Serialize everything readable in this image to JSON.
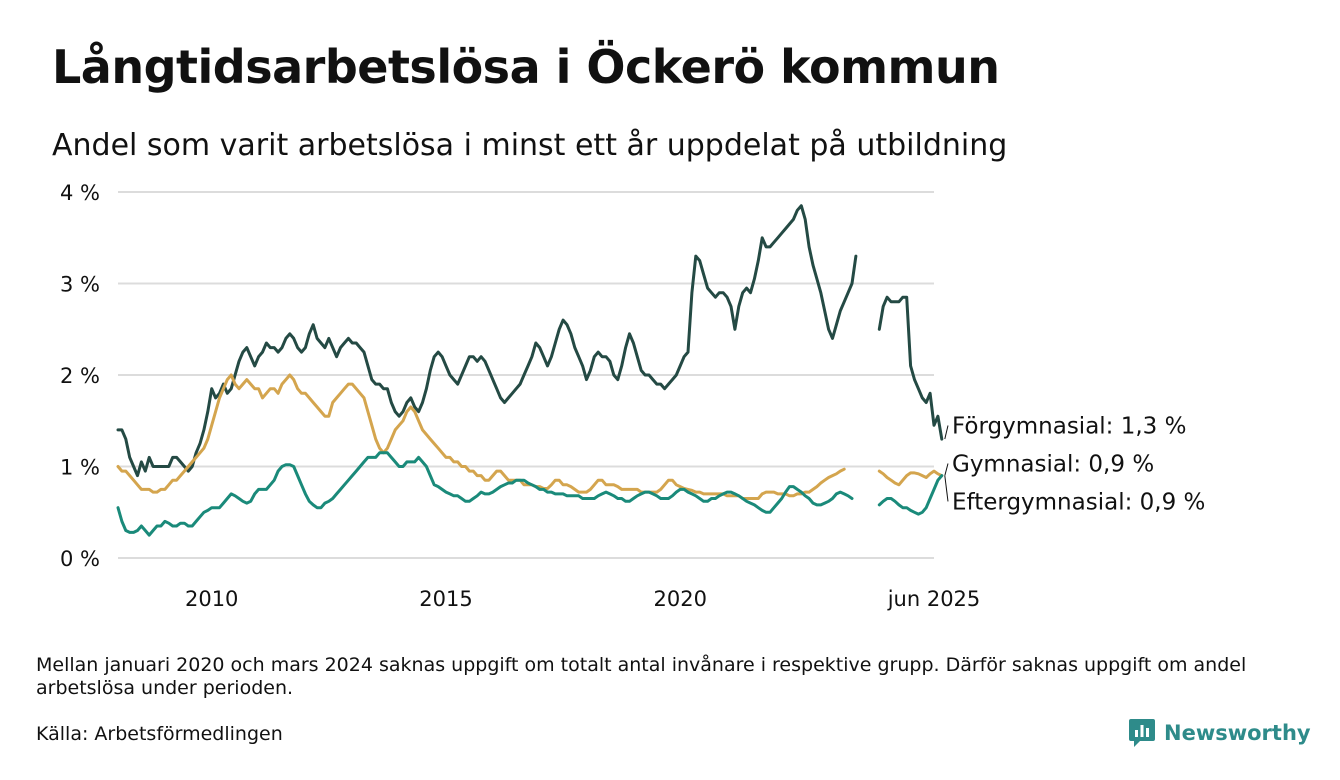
{
  "header": {
    "title": "Långtidsarbetslösa i Öckerö kommun",
    "subtitle": "Andel som varit arbetslösa i minst ett år uppdelat på utbildning"
  },
  "footer": {
    "note": "Mellan januari 2020 och mars 2024 saknas uppgift om totalt antal invånare i respektive grupp. Därför saknas uppgift om andel arbetslösa under perioden.",
    "source": "Källa: Arbetsförmedlingen",
    "brand": "Newsworthy",
    "brand_color": "#2e8b8a",
    "brand_icon": "bar-chart-speech-bubble-icon"
  },
  "chart_data": {
    "type": "line",
    "title": "",
    "xlabel": "",
    "ylabel": "",
    "ylim": [
      0,
      4
    ],
    "xlim": [
      "2008-01",
      "2025-06"
    ],
    "y_ticks": [
      {
        "value": 0,
        "label": "0 %"
      },
      {
        "value": 1,
        "label": "1 %"
      },
      {
        "value": 2,
        "label": "2 %"
      },
      {
        "value": 3,
        "label": "3 %"
      },
      {
        "value": 4,
        "label": "4 %"
      }
    ],
    "x_ticks": [
      {
        "value": "2010-01",
        "label": "2010"
      },
      {
        "value": "2015-01",
        "label": "2015"
      },
      {
        "value": "2020-01",
        "label": "2020"
      },
      {
        "value": "2025-06",
        "label": "jun 2025"
      }
    ],
    "grid": "horizontal",
    "legend": "direct labels at right end of lines",
    "series": [
      {
        "label": "Förgymnasial: 1,3 %",
        "color": "#244a44",
        "segments": [
          {
            "start": "2008-01",
            "values": [
              1.4,
              1.4,
              1.3,
              1.1,
              1.0,
              0.9,
              1.05,
              0.95,
              1.1,
              1.0,
              1.0,
              1.0,
              1.0,
              1.0,
              1.1,
              1.1,
              1.05,
              1.0,
              0.95,
              1.0,
              1.15,
              1.25,
              1.4,
              1.6,
              1.85,
              1.75,
              1.8,
              1.9,
              1.8,
              1.85,
              2.0,
              2.15,
              2.25,
              2.3,
              2.2,
              2.1,
              2.2,
              2.25,
              2.35,
              2.3,
              2.3,
              2.25,
              2.3,
              2.4,
              2.45,
              2.4,
              2.3,
              2.25,
              2.3,
              2.45,
              2.55,
              2.4,
              2.35,
              2.3,
              2.4,
              2.3,
              2.2,
              2.3,
              2.35,
              2.4,
              2.35,
              2.35,
              2.3,
              2.25,
              2.1,
              1.95,
              1.9,
              1.9,
              1.85,
              1.85,
              1.7,
              1.6,
              1.55,
              1.6,
              1.7,
              1.75,
              1.65,
              1.6,
              1.7,
              1.85,
              2.05,
              2.2,
              2.25,
              2.2,
              2.1,
              2.0,
              1.95,
              1.9,
              2.0,
              2.1,
              2.2,
              2.2,
              2.15,
              2.2,
              2.15,
              2.05,
              1.95,
              1.85,
              1.75,
              1.7,
              1.75,
              1.8,
              1.85,
              1.9,
              2.0,
              2.1,
              2.2,
              2.35,
              2.3,
              2.2,
              2.1,
              2.2,
              2.35,
              2.5,
              2.6,
              2.55,
              2.45,
              2.3,
              2.2,
              2.1,
              1.95,
              2.05,
              2.2,
              2.25,
              2.2,
              2.2,
              2.15,
              2.0,
              1.95,
              2.1,
              2.3,
              2.45,
              2.35,
              2.2,
              2.05,
              2.0,
              2.0,
              1.95,
              1.9,
              1.9,
              1.85,
              1.9,
              1.95,
              2.0,
              2.1,
              2.2,
              2.25,
              2.9,
              3.3,
              3.25,
              3.1,
              2.95,
              2.9,
              2.85,
              2.9,
              2.9,
              2.85,
              2.75,
              2.5,
              2.75,
              2.9,
              2.95,
              2.9,
              3.05,
              3.25,
              3.5,
              3.4,
              3.4,
              3.45,
              3.5,
              3.55,
              3.6,
              3.65,
              3.7,
              3.8,
              3.85,
              3.7,
              3.4,
              3.2,
              3.05,
              2.9,
              2.7,
              2.5,
              2.4,
              2.55,
              2.7,
              2.8,
              2.9,
              3.0,
              3.3
            ]
          },
          {
            "start": "2024-04",
            "values": [
              2.5,
              2.75,
              2.85,
              2.8,
              2.8,
              2.8,
              2.85,
              2.85,
              2.1,
              1.95,
              1.85,
              1.75,
              1.7,
              1.8,
              1.45,
              1.55,
              1.3
            ]
          }
        ]
      },
      {
        "label": "Gymnasial: 0,9 %",
        "color": "#d4a54e",
        "segments": [
          {
            "start": "2008-01",
            "values": [
              1.0,
              0.95,
              0.95,
              0.9,
              0.85,
              0.8,
              0.75,
              0.75,
              0.75,
              0.72,
              0.72,
              0.75,
              0.75,
              0.8,
              0.85,
              0.85,
              0.9,
              0.95,
              1.0,
              1.05,
              1.1,
              1.15,
              1.2,
              1.3,
              1.45,
              1.6,
              1.75,
              1.85,
              1.95,
              2.0,
              1.9,
              1.85,
              1.9,
              1.95,
              1.9,
              1.85,
              1.85,
              1.75,
              1.8,
              1.85,
              1.85,
              1.8,
              1.9,
              1.95,
              2.0,
              1.95,
              1.85,
              1.8,
              1.8,
              1.75,
              1.7,
              1.65,
              1.6,
              1.55,
              1.55,
              1.7,
              1.75,
              1.8,
              1.85,
              1.9,
              1.9,
              1.85,
              1.8,
              1.75,
              1.6,
              1.45,
              1.3,
              1.2,
              1.15,
              1.2,
              1.3,
              1.4,
              1.45,
              1.5,
              1.6,
              1.65,
              1.6,
              1.5,
              1.4,
              1.35,
              1.3,
              1.25,
              1.2,
              1.15,
              1.1,
              1.1,
              1.05,
              1.05,
              1.0,
              1.0,
              0.95,
              0.95,
              0.9,
              0.9,
              0.85,
              0.85,
              0.9,
              0.95,
              0.95,
              0.9,
              0.85,
              0.85,
              0.85,
              0.85,
              0.8,
              0.8,
              0.8,
              0.78,
              0.78,
              0.76,
              0.76,
              0.8,
              0.85,
              0.85,
              0.8,
              0.8,
              0.78,
              0.75,
              0.72,
              0.72,
              0.72,
              0.75,
              0.8,
              0.85,
              0.85,
              0.8,
              0.8,
              0.8,
              0.78,
              0.75,
              0.75,
              0.75,
              0.75,
              0.75,
              0.72,
              0.72,
              0.72,
              0.72,
              0.72,
              0.75,
              0.8,
              0.85,
              0.85,
              0.8,
              0.78,
              0.76,
              0.75,
              0.74,
              0.72,
              0.72,
              0.7,
              0.7,
              0.7,
              0.7,
              0.7,
              0.7,
              0.68,
              0.68,
              0.68,
              0.68,
              0.65,
              0.65,
              0.65,
              0.65,
              0.65,
              0.7,
              0.72,
              0.72,
              0.72,
              0.7,
              0.7,
              0.7,
              0.68,
              0.68,
              0.7,
              0.7,
              0.72,
              0.72,
              0.75,
              0.78,
              0.82,
              0.85,
              0.88,
              0.9,
              0.92,
              0.95,
              0.97
            ]
          },
          {
            "start": "2024-04",
            "values": [
              0.95,
              0.92,
              0.88,
              0.85,
              0.82,
              0.8,
              0.85,
              0.9,
              0.93,
              0.93,
              0.92,
              0.9,
              0.88,
              0.92,
              0.95,
              0.92,
              0.9
            ]
          }
        ]
      },
      {
        "label": "Eftergymnasial: 0,9 %",
        "color": "#1a8a7a",
        "segments": [
          {
            "start": "2008-01",
            "values": [
              0.55,
              0.4,
              0.3,
              0.28,
              0.28,
              0.3,
              0.35,
              0.3,
              0.25,
              0.3,
              0.35,
              0.35,
              0.4,
              0.38,
              0.35,
              0.35,
              0.38,
              0.38,
              0.35,
              0.35,
              0.4,
              0.45,
              0.5,
              0.52,
              0.55,
              0.55,
              0.55,
              0.6,
              0.65,
              0.7,
              0.68,
              0.65,
              0.62,
              0.6,
              0.62,
              0.7,
              0.75,
              0.75,
              0.75,
              0.8,
              0.85,
              0.95,
              1.0,
              1.02,
              1.02,
              1.0,
              0.9,
              0.8,
              0.7,
              0.62,
              0.58,
              0.55,
              0.55,
              0.6,
              0.62,
              0.65,
              0.7,
              0.75,
              0.8,
              0.85,
              0.9,
              0.95,
              1.0,
              1.05,
              1.1,
              1.1,
              1.1,
              1.15,
              1.15,
              1.15,
              1.1,
              1.05,
              1.0,
              1.0,
              1.05,
              1.05,
              1.05,
              1.1,
              1.05,
              1.0,
              0.9,
              0.8,
              0.78,
              0.75,
              0.72,
              0.7,
              0.68,
              0.68,
              0.65,
              0.62,
              0.62,
              0.65,
              0.68,
              0.72,
              0.7,
              0.7,
              0.72,
              0.75,
              0.78,
              0.8,
              0.82,
              0.82,
              0.85,
              0.85,
              0.85,
              0.82,
              0.8,
              0.78,
              0.75,
              0.75,
              0.72,
              0.72,
              0.7,
              0.7,
              0.7,
              0.68,
              0.68,
              0.68,
              0.68,
              0.65,
              0.65,
              0.65,
              0.65,
              0.68,
              0.7,
              0.72,
              0.7,
              0.68,
              0.65,
              0.65,
              0.62,
              0.62,
              0.65,
              0.68,
              0.7,
              0.72,
              0.72,
              0.7,
              0.68,
              0.65,
              0.65,
              0.65,
              0.68,
              0.72,
              0.75,
              0.75,
              0.72,
              0.7,
              0.68,
              0.65,
              0.62,
              0.62,
              0.65,
              0.65,
              0.68,
              0.7,
              0.72,
              0.72,
              0.7,
              0.68,
              0.65,
              0.62,
              0.6,
              0.58,
              0.55,
              0.52,
              0.5,
              0.5,
              0.55,
              0.6,
              0.65,
              0.72,
              0.78,
              0.78,
              0.75,
              0.72,
              0.68,
              0.65,
              0.6,
              0.58,
              0.58,
              0.6,
              0.62,
              0.65,
              0.7,
              0.72,
              0.7,
              0.68,
              0.65
            ]
          },
          {
            "start": "2024-04",
            "values": [
              0.58,
              0.62,
              0.65,
              0.65,
              0.62,
              0.58,
              0.55,
              0.55,
              0.52,
              0.5,
              0.48,
              0.5,
              0.55,
              0.65,
              0.75,
              0.85,
              0.9
            ]
          }
        ]
      }
    ]
  }
}
